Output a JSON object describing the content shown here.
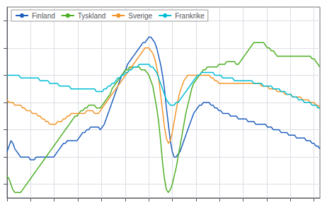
{
  "chart_data": {
    "type": "line",
    "x": [
      2000,
      2000.0823,
      2000.1646,
      2000.2469,
      2000.3292,
      2000.4115,
      2000.4938,
      2000.5761,
      2000.6584,
      2000.7407,
      2000.823,
      2000.9053,
      2000.9876,
      2001.0699,
      2001.1522,
      2001.2345,
      2001.3168,
      2001.3991,
      2001.4814,
      2001.5637,
      2001.646,
      2001.7283,
      2001.8106,
      2001.8929,
      2001.9752,
      2002.0575,
      2002.1398,
      2002.222,
      2002.3043,
      2002.3866,
      2002.4689,
      2002.5512,
      2002.6335,
      2002.7158,
      2002.7981,
      2002.8804,
      2002.9627,
      2003.045,
      2003.1273,
      2003.2096,
      2003.2919,
      2003.3742,
      2003.4565,
      2003.5388,
      2003.6211,
      2003.7034,
      2003.7857,
      2003.868,
      2003.9503,
      2004.0326,
      2004.1149,
      2004.1972,
      2004.2795,
      2004.3618,
      2004.4441,
      2004.5264,
      2004.6087,
      2004.691,
      2004.7733,
      2004.8556,
      2004.9379,
      2005.0202,
      2005.1025,
      2005.1848,
      2005.2671,
      2005.3494,
      2005.4317,
      2005.514,
      2005.5963,
      2005.6786,
      2005.7609,
      2005.8432,
      2005.9255,
      2006.0078,
      2006.0901,
      2006.1724,
      2006.2547,
      2006.337,
      2006.4193,
      2006.5016,
      2006.5839,
      2006.6661,
      2006.7484,
      2006.8307,
      2006.913,
      2006.9953,
      2007.0776,
      2007.1599,
      2007.2422,
      2007.3245,
      2007.4068,
      2007.4891,
      2007.5714,
      2007.6537,
      2007.736,
      2007.8183,
      2007.9006,
      2007.9829,
      2008.0652,
      2008.1475,
      2008.2298,
      2008.3121,
      2008.3944,
      2008.4767,
      2008.559,
      2008.6413,
      2008.7236,
      2008.8059,
      2008.8882,
      2008.9705,
      2009.0528,
      2009.1351,
      2009.2174,
      2009.2997,
      2009.382,
      2009.4643,
      2009.5466,
      2009.6289,
      2009.7112,
      2009.7935,
      2009.8758,
      2009.9581,
      2010.0404,
      2010.1227,
      2010.205,
      2010.2873,
      2010.3696,
      2010.4519,
      2010.5342,
      2010.6165,
      2010.6988,
      2010.7811,
      2010.8634,
      2010.9457,
      2011.028,
      2011.1102,
      2011.1925,
      2011.2748,
      2011.3571,
      2011.4394,
      2011.5217,
      2011.604,
      2011.6863,
      2011.7686,
      2011.8509,
      2011.9332,
      2012.0155,
      2012.0978,
      2012.1801,
      2012.2624,
      2012.3447,
      2012.427,
      2012.5093,
      2012.5916,
      2012.6739,
      2012.7562,
      2012.8385,
      2012.9208,
      2013.0031,
      2013.0854,
      2013.1677,
      2013.25
    ],
    "series": [
      {
        "name": "Finland",
        "color": "#1f5fbd",
        "values": [
          72,
          74,
          76,
          75,
          73,
          72,
          71,
          70,
          70,
          70,
          70,
          70,
          69,
          69,
          69,
          70,
          70,
          70,
          70,
          70,
          70,
          70,
          70,
          70,
          70,
          71,
          72,
          73,
          74,
          75,
          75,
          76,
          76,
          76,
          76,
          76,
          76,
          77,
          78,
          79,
          79,
          80,
          80,
          81,
          81,
          81,
          81,
          81,
          80,
          81,
          82,
          84,
          86,
          88,
          90,
          92,
          94,
          96,
          98,
          100,
          101,
          102,
          104,
          105,
          106,
          107,
          108,
          109,
          110,
          111,
          112,
          112,
          113,
          114,
          114,
          113,
          112,
          110,
          107,
          104,
          100,
          95,
          88,
          82,
          76,
          72,
          70,
          70,
          71,
          72,
          74,
          76,
          78,
          80,
          82,
          84,
          86,
          87,
          88,
          89,
          89,
          90,
          90,
          90,
          90,
          89,
          89,
          88,
          88,
          87,
          87,
          86,
          86,
          86,
          86,
          85,
          85,
          85,
          85,
          84,
          84,
          84,
          84,
          84,
          83,
          83,
          83,
          83,
          82,
          82,
          82,
          82,
          82,
          82,
          81,
          81,
          81,
          80,
          80,
          80,
          80,
          79,
          79,
          79,
          79,
          78,
          78,
          78,
          78,
          77,
          77,
          77,
          77,
          77,
          76,
          76,
          76,
          75,
          75,
          74,
          74,
          73
        ]
      },
      {
        "name": "Tyskland",
        "color": "#4caf24",
        "values": [
          63,
          62,
          60,
          58,
          57,
          57,
          57,
          57,
          58,
          59,
          60,
          61,
          62,
          63,
          64,
          65,
          66,
          67,
          68,
          69,
          70,
          71,
          72,
          73,
          74,
          75,
          76,
          77,
          78,
          79,
          80,
          81,
          82,
          83,
          84,
          85,
          85,
          86,
          87,
          87,
          88,
          88,
          89,
          89,
          89,
          89,
          88,
          88,
          88,
          89,
          90,
          91,
          92,
          93,
          95,
          96,
          97,
          98,
          99,
          100,
          101,
          102,
          102,
          103,
          103,
          103,
          103,
          103,
          103,
          102,
          102,
          102,
          101,
          100,
          98,
          96,
          92,
          88,
          83,
          76,
          68,
          62,
          58,
          57,
          58,
          60,
          63,
          66,
          70,
          74,
          78,
          82,
          86,
          89,
          92,
          95,
          97,
          98,
          99,
          100,
          101,
          102,
          102,
          103,
          103,
          103,
          103,
          103,
          103,
          104,
          104,
          104,
          104,
          105,
          105,
          105,
          105,
          105,
          104,
          104,
          105,
          106,
          107,
          108,
          109,
          110,
          111,
          112,
          112,
          112,
          112,
          112,
          112,
          111,
          110,
          110,
          109,
          109,
          108,
          107,
          107,
          107,
          107,
          107,
          107,
          107,
          107,
          107,
          107,
          107,
          107,
          107,
          107,
          107,
          107,
          107,
          107,
          106,
          106,
          105,
          104,
          103
        ]
      },
      {
        "name": "Sverige",
        "color": "#f4952a",
        "values": [
          91,
          90,
          90,
          90,
          89,
          89,
          89,
          89,
          88,
          88,
          87,
          87,
          87,
          86,
          86,
          86,
          85,
          85,
          84,
          84,
          83,
          83,
          82,
          82,
          82,
          82,
          83,
          83,
          83,
          84,
          84,
          85,
          85,
          86,
          86,
          86,
          86,
          86,
          86,
          86,
          86,
          87,
          87,
          87,
          87,
          86,
          86,
          86,
          87,
          88,
          89,
          90,
          91,
          92,
          93,
          94,
          95,
          96,
          97,
          98,
          99,
          100,
          101,
          102,
          103,
          104,
          105,
          106,
          107,
          108,
          109,
          110,
          110,
          110,
          109,
          108,
          106,
          103,
          99,
          93,
          87,
          81,
          77,
          75,
          76,
          79,
          83,
          87,
          91,
          94,
          96,
          98,
          99,
          100,
          100,
          100,
          100,
          100,
          100,
          100,
          100,
          100,
          100,
          100,
          100,
          99,
          99,
          98,
          98,
          97,
          97,
          97,
          97,
          97,
          97,
          97,
          97,
          97,
          97,
          97,
          97,
          97,
          97,
          97,
          97,
          97,
          97,
          97,
          97,
          97,
          97,
          96,
          96,
          96,
          96,
          95,
          95,
          95,
          95,
          94,
          94,
          94,
          94,
          93,
          93,
          93,
          93,
          92,
          92,
          92,
          92,
          92,
          91,
          91,
          91,
          91,
          90,
          90,
          90,
          89,
          89,
          88
        ]
      },
      {
        "name": "Frankrike",
        "color": "#00bcd4",
        "values": [
          100,
          100,
          100,
          100,
          100,
          100,
          100,
          99,
          99,
          99,
          99,
          99,
          99,
          99,
          99,
          99,
          99,
          98,
          98,
          98,
          98,
          98,
          97,
          97,
          97,
          97,
          97,
          96,
          96,
          96,
          96,
          96,
          96,
          95,
          95,
          95,
          95,
          95,
          95,
          95,
          95,
          95,
          95,
          95,
          95,
          95,
          94,
          94,
          94,
          94,
          95,
          95,
          96,
          96,
          97,
          97,
          98,
          99,
          99,
          100,
          100,
          101,
          101,
          102,
          102,
          103,
          103,
          103,
          104,
          104,
          104,
          104,
          104,
          104,
          103,
          103,
          102,
          101,
          99,
          97,
          95,
          93,
          91,
          90,
          89,
          89,
          89,
          90,
          90,
          91,
          92,
          93,
          94,
          95,
          96,
          97,
          98,
          99,
          100,
          100,
          101,
          101,
          101,
          101,
          101,
          101,
          101,
          100,
          100,
          100,
          100,
          99,
          99,
          99,
          99,
          99,
          99,
          98,
          98,
          98,
          98,
          98,
          98,
          98,
          98,
          98,
          98,
          97,
          97,
          97,
          97,
          97,
          96,
          96,
          96,
          96,
          96,
          95,
          95,
          95,
          95,
          94,
          94,
          94,
          93,
          93,
          93,
          92,
          92,
          92,
          91,
          91,
          91,
          90,
          90,
          90,
          90,
          89,
          89,
          89,
          88,
          88
        ]
      }
    ],
    "xlim": [
      2000,
      2013.25
    ],
    "xticks": [
      2000,
      2001,
      2002,
      2003,
      2004,
      2005,
      2006,
      2007,
      2008,
      2009,
      2010,
      2011,
      2012,
      2013
    ],
    "ylim": [
      55,
      125
    ],
    "yticks": [
      60,
      70,
      80,
      90,
      100,
      110,
      120
    ],
    "grid": true,
    "legend": "upper left",
    "tick_labels": false
  }
}
